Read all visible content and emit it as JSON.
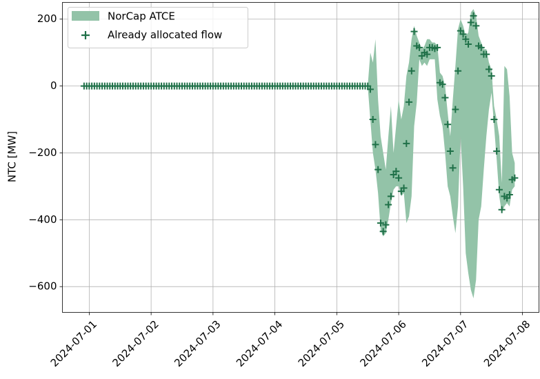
{
  "chart_data": {
    "type": "band_scatter",
    "ylabel": "NTC [MW]",
    "xlim": [
      "2024-06-30 13:36",
      "2024-07-08 06:24"
    ],
    "xticks": [
      "2024-07-01",
      "2024-07-02",
      "2024-07-03",
      "2024-07-04",
      "2024-07-05",
      "2024-07-06",
      "2024-07-07",
      "2024-07-08"
    ],
    "ylim": [
      -677,
      250
    ],
    "yticks": [
      {
        "value": -600,
        "label": "−600"
      },
      {
        "value": -400,
        "label": "−400"
      },
      {
        "value": -200,
        "label": "−200"
      },
      0,
      200
    ],
    "grid": true,
    "legend": "upper left",
    "x": [
      "2024-06-30 22:00",
      "2024-06-30 23:00",
      "2024-07-01 00:00",
      "2024-07-01 01:00",
      "2024-07-01 02:00",
      "2024-07-01 03:00",
      "2024-07-01 04:00",
      "2024-07-01 05:00",
      "2024-07-01 06:00",
      "2024-07-01 07:00",
      "2024-07-01 08:00",
      "2024-07-01 09:00",
      "2024-07-01 10:00",
      "2024-07-01 11:00",
      "2024-07-01 12:00",
      "2024-07-01 13:00",
      "2024-07-01 14:00",
      "2024-07-01 15:00",
      "2024-07-01 16:00",
      "2024-07-01 17:00",
      "2024-07-01 18:00",
      "2024-07-01 19:00",
      "2024-07-01 20:00",
      "2024-07-01 21:00",
      "2024-07-01 22:00",
      "2024-07-01 23:00",
      "2024-07-02 00:00",
      "2024-07-02 01:00",
      "2024-07-02 02:00",
      "2024-07-02 03:00",
      "2024-07-02 04:00",
      "2024-07-02 05:00",
      "2024-07-02 06:00",
      "2024-07-02 07:00",
      "2024-07-02 08:00",
      "2024-07-02 09:00",
      "2024-07-02 10:00",
      "2024-07-02 11:00",
      "2024-07-02 12:00",
      "2024-07-02 13:00",
      "2024-07-02 14:00",
      "2024-07-02 15:00",
      "2024-07-02 16:00",
      "2024-07-02 17:00",
      "2024-07-02 18:00",
      "2024-07-02 19:00",
      "2024-07-02 20:00",
      "2024-07-02 21:00",
      "2024-07-02 22:00",
      "2024-07-02 23:00",
      "2024-07-03 00:00",
      "2024-07-03 01:00",
      "2024-07-03 02:00",
      "2024-07-03 03:00",
      "2024-07-03 04:00",
      "2024-07-03 05:00",
      "2024-07-03 06:00",
      "2024-07-03 07:00",
      "2024-07-03 08:00",
      "2024-07-03 09:00",
      "2024-07-03 10:00",
      "2024-07-03 11:00",
      "2024-07-03 12:00",
      "2024-07-03 13:00",
      "2024-07-03 14:00",
      "2024-07-03 15:00",
      "2024-07-03 16:00",
      "2024-07-03 17:00",
      "2024-07-03 18:00",
      "2024-07-03 19:00",
      "2024-07-03 20:00",
      "2024-07-03 21:00",
      "2024-07-03 22:00",
      "2024-07-03 23:00",
      "2024-07-04 00:00",
      "2024-07-04 01:00",
      "2024-07-04 02:00",
      "2024-07-04 03:00",
      "2024-07-04 04:00",
      "2024-07-04 05:00",
      "2024-07-04 06:00",
      "2024-07-04 07:00",
      "2024-07-04 08:00",
      "2024-07-04 09:00",
      "2024-07-04 10:00",
      "2024-07-04 11:00",
      "2024-07-04 12:00",
      "2024-07-04 13:00",
      "2024-07-04 14:00",
      "2024-07-04 15:00",
      "2024-07-04 16:00",
      "2024-07-04 17:00",
      "2024-07-04 18:00",
      "2024-07-04 19:00",
      "2024-07-04 20:00",
      "2024-07-04 21:00",
      "2024-07-04 22:00",
      "2024-07-04 23:00",
      "2024-07-05 00:00",
      "2024-07-05 01:00",
      "2024-07-05 02:00",
      "2024-07-05 03:00",
      "2024-07-05 04:00",
      "2024-07-05 05:00",
      "2024-07-05 06:00",
      "2024-07-05 07:00",
      "2024-07-05 08:00",
      "2024-07-05 09:00",
      "2024-07-05 10:00",
      "2024-07-05 11:00",
      "2024-07-05 12:00",
      "2024-07-05 13:00",
      "2024-07-05 14:00",
      "2024-07-05 15:00",
      "2024-07-05 16:00",
      "2024-07-05 17:00",
      "2024-07-05 18:00",
      "2024-07-05 19:00",
      "2024-07-05 20:00",
      "2024-07-05 21:00",
      "2024-07-05 22:00",
      "2024-07-05 23:00",
      "2024-07-06 00:00",
      "2024-07-06 01:00",
      "2024-07-06 02:00",
      "2024-07-06 03:00",
      "2024-07-06 04:00",
      "2024-07-06 05:00",
      "2024-07-06 06:00",
      "2024-07-06 07:00",
      "2024-07-06 08:00",
      "2024-07-06 09:00",
      "2024-07-06 10:00",
      "2024-07-06 11:00",
      "2024-07-06 12:00",
      "2024-07-06 13:00",
      "2024-07-06 14:00",
      "2024-07-06 15:00",
      "2024-07-06 16:00",
      "2024-07-06 17:00",
      "2024-07-06 18:00",
      "2024-07-06 19:00",
      "2024-07-06 20:00",
      "2024-07-06 21:00",
      "2024-07-06 22:00",
      "2024-07-06 23:00",
      "2024-07-07 00:00",
      "2024-07-07 01:00",
      "2024-07-07 02:00",
      "2024-07-07 03:00",
      "2024-07-07 04:00",
      "2024-07-07 05:00",
      "2024-07-07 06:00",
      "2024-07-07 07:00",
      "2024-07-07 08:00",
      "2024-07-07 09:00",
      "2024-07-07 10:00",
      "2024-07-07 11:00",
      "2024-07-07 12:00",
      "2024-07-07 13:00",
      "2024-07-07 14:00",
      "2024-07-07 15:00",
      "2024-07-07 16:00",
      "2024-07-07 17:00",
      "2024-07-07 18:00",
      "2024-07-07 19:00",
      "2024-07-07 20:00",
      "2024-07-07 21:00"
    ],
    "series": [
      {
        "name": "NorCap ATCE",
        "kind": "band",
        "color": "#93c3a8",
        "lower": [
          null,
          null,
          null,
          null,
          null,
          null,
          null,
          null,
          null,
          null,
          null,
          null,
          null,
          null,
          null,
          null,
          null,
          null,
          null,
          null,
          null,
          null,
          null,
          null,
          null,
          null,
          null,
          null,
          null,
          null,
          null,
          null,
          null,
          null,
          null,
          null,
          null,
          null,
          null,
          null,
          null,
          null,
          null,
          null,
          null,
          null,
          null,
          null,
          null,
          null,
          null,
          null,
          null,
          null,
          null,
          null,
          null,
          null,
          null,
          null,
          null,
          null,
          null,
          null,
          null,
          null,
          null,
          null,
          null,
          null,
          null,
          null,
          null,
          null,
          null,
          null,
          null,
          null,
          null,
          null,
          null,
          null,
          null,
          null,
          null,
          null,
          null,
          null,
          null,
          null,
          null,
          null,
          null,
          null,
          null,
          null,
          null,
          null,
          null,
          null,
          null,
          null,
          null,
          null,
          null,
          null,
          null,
          null,
          null,
          null,
          0,
          -100,
          -200,
          -250,
          -320,
          -430,
          -450,
          -440,
          -400,
          -350,
          -310,
          -300,
          -300,
          -330,
          -320,
          -410,
          -390,
          -330,
          -120,
          -50,
          80,
          60,
          70,
          60,
          80,
          80,
          80,
          -40,
          -90,
          -120,
          -200,
          -300,
          -330,
          -390,
          -440,
          -360,
          -150,
          -300,
          -500,
          -560,
          -610,
          -635,
          -580,
          -400,
          -360,
          -250,
          -150,
          -70,
          -20,
          -120,
          -220,
          -330,
          -380,
          -360,
          -350,
          -360,
          -310,
          -300
        ],
        "upper": [
          null,
          null,
          null,
          null,
          null,
          null,
          null,
          null,
          null,
          null,
          null,
          null,
          null,
          null,
          null,
          null,
          null,
          null,
          null,
          null,
          null,
          null,
          null,
          null,
          null,
          null,
          null,
          null,
          null,
          null,
          null,
          null,
          null,
          null,
          null,
          null,
          null,
          null,
          null,
          null,
          null,
          null,
          null,
          null,
          null,
          null,
          null,
          null,
          null,
          null,
          null,
          null,
          null,
          null,
          null,
          null,
          null,
          null,
          null,
          null,
          null,
          null,
          null,
          null,
          null,
          null,
          null,
          null,
          null,
          null,
          null,
          null,
          null,
          null,
          null,
          null,
          null,
          null,
          null,
          null,
          null,
          null,
          null,
          null,
          null,
          null,
          null,
          null,
          null,
          null,
          null,
          null,
          null,
          null,
          null,
          null,
          null,
          null,
          null,
          null,
          null,
          null,
          null,
          null,
          null,
          null,
          null,
          null,
          null,
          null,
          0,
          100,
          70,
          140,
          -40,
          -150,
          -200,
          -250,
          -150,
          -60,
          -200,
          -120,
          -40,
          -100,
          -60,
          30,
          70,
          140,
          180,
          150,
          130,
          110,
          120,
          140,
          140,
          130,
          130,
          120,
          40,
          30,
          0,
          -80,
          -150,
          -40,
          60,
          170,
          200,
          180,
          150,
          160,
          220,
          230,
          210,
          150,
          130,
          110,
          110,
          70,
          50,
          -60,
          -100,
          -150,
          -290,
          60,
          50,
          -30,
          -200,
          -230
        ]
      },
      {
        "name": "Already allocated flow",
        "kind": "scatter",
        "color": "#1f7048",
        "values": [
          0,
          0,
          0,
          0,
          0,
          0,
          0,
          0,
          0,
          0,
          0,
          0,
          0,
          0,
          0,
          0,
          0,
          0,
          0,
          0,
          0,
          0,
          0,
          0,
          0,
          0,
          0,
          0,
          0,
          0,
          0,
          0,
          0,
          0,
          0,
          0,
          0,
          0,
          0,
          0,
          0,
          0,
          0,
          0,
          0,
          0,
          0,
          0,
          0,
          0,
          0,
          0,
          0,
          0,
          0,
          0,
          0,
          0,
          0,
          0,
          0,
          0,
          0,
          0,
          0,
          0,
          0,
          0,
          0,
          0,
          0,
          0,
          0,
          0,
          0,
          0,
          0,
          0,
          0,
          0,
          0,
          0,
          0,
          0,
          0,
          0,
          0,
          0,
          0,
          0,
          0,
          0,
          0,
          0,
          0,
          0,
          0,
          0,
          0,
          0,
          0,
          0,
          0,
          0,
          0,
          0,
          0,
          0,
          0,
          0,
          0,
          -10,
          -100,
          -175,
          -250,
          -410,
          -435,
          -415,
          -355,
          -330,
          -265,
          -255,
          -275,
          -315,
          -305,
          -172,
          -48,
          45,
          163,
          120,
          115,
          90,
          100,
          95,
          115,
          115,
          112,
          115,
          10,
          5,
          -35,
          -115,
          -195,
          -245,
          -70,
          45,
          165,
          155,
          140,
          125,
          190,
          210,
          180,
          120,
          115,
          95,
          95,
          50,
          30,
          -100,
          -195,
          -310,
          -370,
          -330,
          -335,
          -325,
          -280,
          -275
        ]
      }
    ]
  }
}
